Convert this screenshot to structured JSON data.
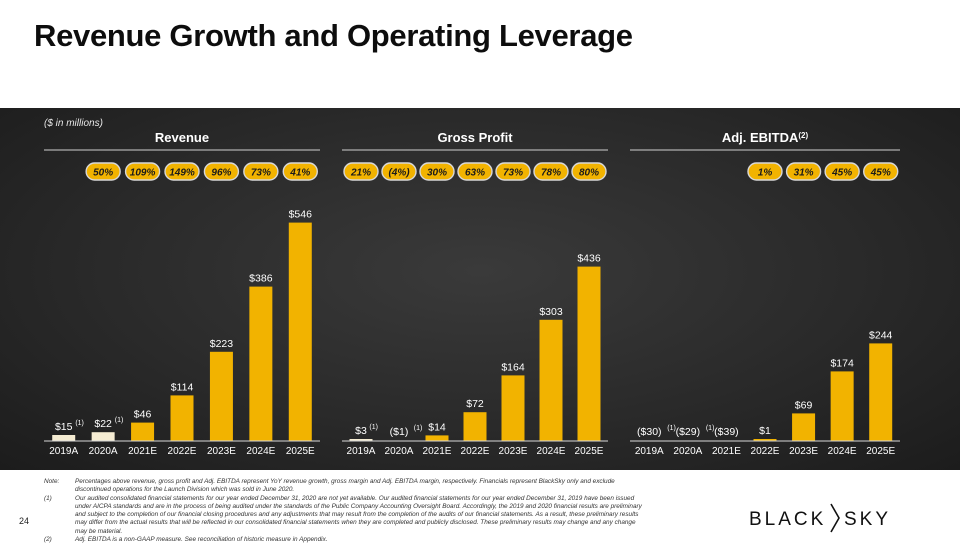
{
  "slide": {
    "title": "Revenue Growth and Operating Leverage",
    "units_note": "($ in millions)",
    "page_number": "24",
    "logo_text": "BLACK|SKY"
  },
  "footnotes": [
    {
      "key": "Note:",
      "text": "Percentages above revenue, gross profit and Adj. EBITDA represent YoY revenue growth, gross margin and Adj. EBITDA margin, respectively. Financials represent BlackSky only and exclude discontinued operations for the Launch Division which was sold in June 2020."
    },
    {
      "key": "(1)",
      "text": "Our audited consolidated financial statements for our year ended December 31, 2020 are not yet available. Our audited financial statements for our year ended December 31, 2019 have been issued under AICPA standards and are in the process of being audited under the standards of the Public Company Accounting Oversight Board. Accordingly, the 2019 and 2020 financial results are preliminary and subject to the completion of our financial closing procedures and any adjustments that may result from the completion of the audits of our financial statements. As a result, these preliminary results may differ from the actual results that will be reflected in our consolidated financial statements when they are completed and publicly disclosed. These preliminary results may change and any change may be material."
    },
    {
      "key": "(2)",
      "text": "Adj. EBITDA is a non-GAAP measure. See reconciliation of historic measure in Appendix."
    }
  ],
  "colors": {
    "bar": "#f2b300",
    "bar_light": "#f5ecd2",
    "pill_fill": "#f2b300",
    "pill_border": "#d8d8d8"
  },
  "chart_data": [
    {
      "type": "bar",
      "title": "Revenue",
      "categories": [
        "2019A",
        "2020A",
        "2021E",
        "2022E",
        "2023E",
        "2024E",
        "2025E"
      ],
      "values": [
        15,
        22,
        46,
        114,
        223,
        386,
        546
      ],
      "value_labels": [
        "$15",
        "$22",
        "$46",
        "$114",
        "$223",
        "$386",
        "$546"
      ],
      "footnote_marks": [
        "(1)",
        "(1)",
        "",
        "",
        "",
        "",
        ""
      ],
      "light_bars": [
        true,
        true,
        false,
        false,
        false,
        false,
        false
      ],
      "pills": [
        "50%",
        "109%",
        "149%",
        "96%",
        "73%",
        "41%"
      ],
      "pill_start_index": 1
    },
    {
      "type": "bar",
      "title": "Gross Profit",
      "categories": [
        "2019A",
        "2020A",
        "2021E",
        "2022E",
        "2023E",
        "2024E",
        "2025E"
      ],
      "values": [
        3,
        -1,
        14,
        72,
        164,
        303,
        436
      ],
      "value_labels": [
        "$3",
        "($1)",
        "$14",
        "$72",
        "$164",
        "$303",
        "$436"
      ],
      "footnote_marks": [
        "(1)",
        "(1)",
        "",
        "",
        "",
        "",
        ""
      ],
      "light_bars": [
        true,
        true,
        false,
        false,
        false,
        false,
        false
      ],
      "pills": [
        "21%",
        "(4%)",
        "30%",
        "63%",
        "73%",
        "78%",
        "80%"
      ],
      "pill_start_index": 0
    },
    {
      "type": "bar",
      "title": "Adj. EBITDA",
      "title_sup": "(2)",
      "categories": [
        "2019A",
        "2020A",
        "2021E",
        "2022E",
        "2023E",
        "2024E",
        "2025E"
      ],
      "values": [
        -30,
        -29,
        -39,
        1,
        69,
        174,
        244
      ],
      "value_labels": [
        "($30)",
        "($29)",
        "($39)",
        "$1",
        "$69",
        "$174",
        "$244"
      ],
      "footnote_marks": [
        "(1)",
        "(1)",
        "",
        "",
        "",
        "",
        ""
      ],
      "light_bars": [
        false,
        false,
        false,
        false,
        false,
        false,
        false
      ],
      "pills": [
        "1%",
        "31%",
        "45%",
        "45%"
      ],
      "pill_start_index": 3
    }
  ]
}
